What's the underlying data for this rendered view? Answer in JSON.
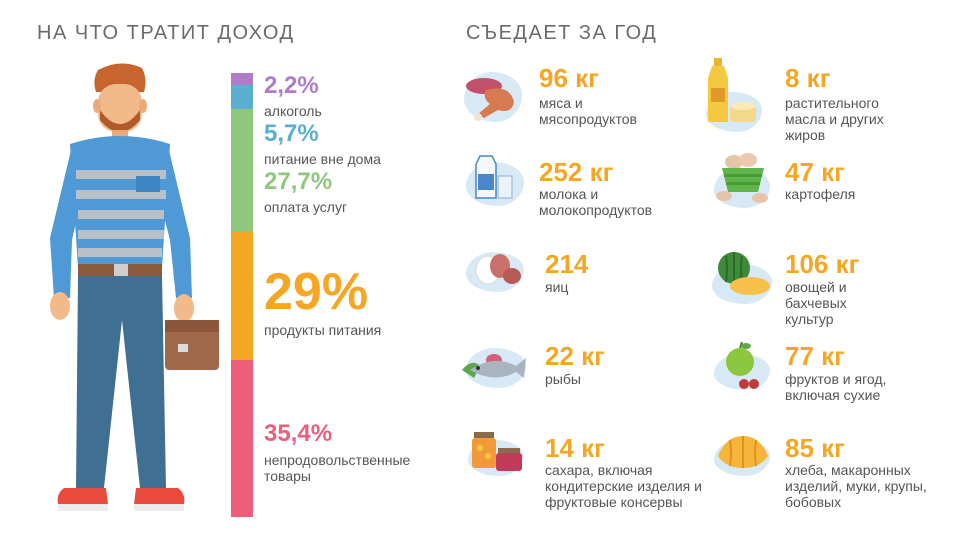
{
  "left": {
    "title": "НА ЧТО ТРАТИТ ДОХОД",
    "segments": [
      {
        "value": "2,2%",
        "label": "алкоголь",
        "color": "#b07cc8"
      },
      {
        "value": "5,7%",
        "label": "питание вне дома",
        "color": "#5aaed0"
      },
      {
        "value": "27,7%",
        "label": "оплата услуг",
        "color": "#8fc77e"
      },
      {
        "value": "29%",
        "label": "продукты питания",
        "color": "#f5a623"
      },
      {
        "value": "35,4%",
        "label": "непродовольственные товары",
        "color": "#ec5e7a"
      }
    ]
  },
  "right": {
    "title": "СЪЕДАЕТ ЗА ГОД",
    "items": [
      {
        "value": "96 кг",
        "label": "мяса и мясопродуктов",
        "icon": "meat-icon"
      },
      {
        "value": "8 кг",
        "label": "растительного масла и других жиров",
        "icon": "oil-bottle-icon"
      },
      {
        "value": "252 кг",
        "label": "молока и молокопродуктов",
        "icon": "milk-icon"
      },
      {
        "value": "47 кг",
        "label": "картофеля",
        "icon": "potato-basket-icon"
      },
      {
        "value": "214",
        "label": "яиц",
        "icon": "eggs-icon"
      },
      {
        "value": "106 кг",
        "label": "овощей и бахчевых культур",
        "icon": "melon-icon"
      },
      {
        "value": "22 кг",
        "label": "рыбы",
        "icon": "fish-icon"
      },
      {
        "value": "77 кг",
        "label": "фруктов и ягод, включая сухие",
        "icon": "apple-icon"
      },
      {
        "value": "14 кг",
        "label": "сахара, включая кондитерские изделия и фруктовые консервы",
        "icon": "jars-icon"
      },
      {
        "value": "85 кг",
        "label": "хлеба, макаронных изделий, муки, крупы, бобовых",
        "icon": "croissant-icon"
      }
    ]
  }
}
